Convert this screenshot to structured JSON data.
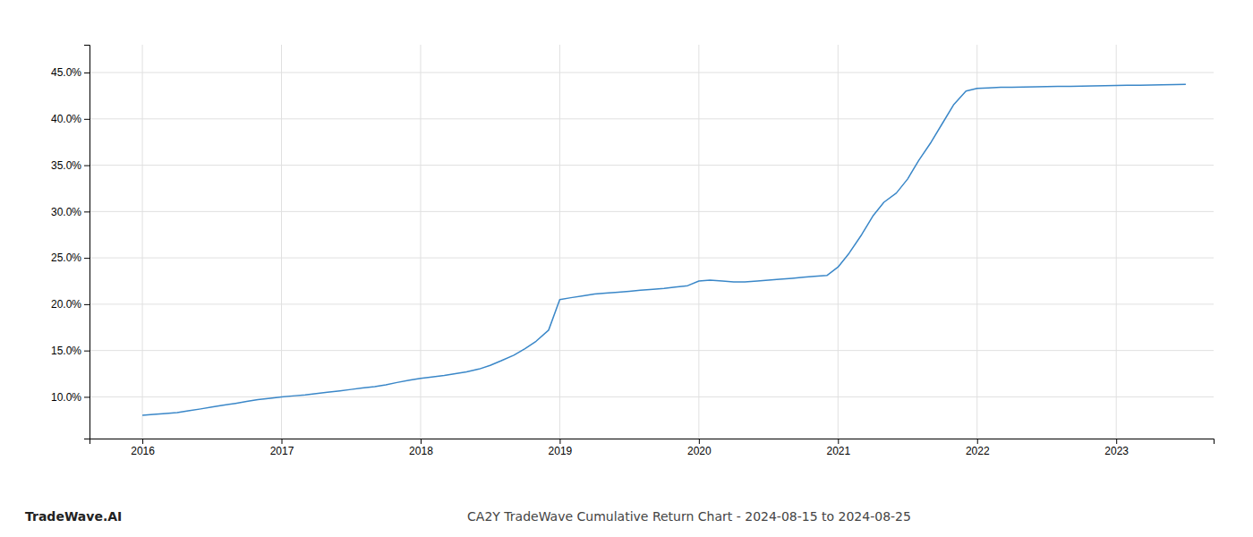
{
  "chart_data": {
    "type": "line",
    "title": "CA2Y TradeWave Cumulative Return Chart - 2024-08-15 to 2024-08-25",
    "annotations": [
      "TradeWave.AI"
    ],
    "color": "#3a87c8",
    "grid": true,
    "x": [
      2016.0,
      2016.08,
      2016.17,
      2016.25,
      2016.33,
      2016.42,
      2016.5,
      2016.58,
      2016.67,
      2016.75,
      2016.83,
      2016.92,
      2017.0,
      2017.08,
      2017.17,
      2017.25,
      2017.33,
      2017.42,
      2017.5,
      2017.58,
      2017.67,
      2017.75,
      2017.83,
      2017.92,
      2018.0,
      2018.08,
      2018.17,
      2018.25,
      2018.33,
      2018.42,
      2018.5,
      2018.58,
      2018.67,
      2018.75,
      2018.83,
      2018.92,
      2019.0,
      2019.08,
      2019.17,
      2019.25,
      2019.33,
      2019.42,
      2019.5,
      2019.58,
      2019.67,
      2019.75,
      2019.83,
      2019.92,
      2020.0,
      2020.08,
      2020.17,
      2020.25,
      2020.33,
      2020.42,
      2020.5,
      2020.58,
      2020.67,
      2020.75,
      2020.83,
      2020.92,
      2021.0,
      2021.08,
      2021.17,
      2021.25,
      2021.33,
      2021.42,
      2021.5,
      2021.58,
      2021.67,
      2021.75,
      2021.83,
      2021.92,
      2022.0,
      2022.08,
      2022.17,
      2022.25,
      2022.33,
      2022.42,
      2022.5,
      2022.58,
      2022.67,
      2022.75,
      2022.83,
      2022.92,
      2023.0,
      2023.08,
      2023.17,
      2023.25,
      2023.33,
      2023.42,
      2023.5
    ],
    "values": [
      8.0,
      8.1,
      8.2,
      8.3,
      8.5,
      8.7,
      8.9,
      9.1,
      9.3,
      9.5,
      9.7,
      9.85,
      10.0,
      10.1,
      10.2,
      10.35,
      10.5,
      10.65,
      10.8,
      10.95,
      11.1,
      11.3,
      11.55,
      11.8,
      12.0,
      12.15,
      12.3,
      12.5,
      12.7,
      13.0,
      13.4,
      13.9,
      14.5,
      15.2,
      16.0,
      17.2,
      20.5,
      20.7,
      20.9,
      21.1,
      21.2,
      21.3,
      21.4,
      21.5,
      21.6,
      21.7,
      21.85,
      22.0,
      22.5,
      22.6,
      22.5,
      22.4,
      22.4,
      22.5,
      22.6,
      22.7,
      22.8,
      22.9,
      23.0,
      23.1,
      24.0,
      25.5,
      27.5,
      29.5,
      31.0,
      32.0,
      33.5,
      35.5,
      37.5,
      39.5,
      41.5,
      43.0,
      43.3,
      43.35,
      43.4,
      43.42,
      43.44,
      43.46,
      43.48,
      43.5,
      43.52,
      43.54,
      43.56,
      43.58,
      43.6,
      43.62,
      43.64,
      43.66,
      43.68,
      43.7,
      43.72
    ],
    "xlim": [
      2015.62,
      2023.7
    ],
    "ylim": [
      5.5,
      48.0
    ],
    "xticks": [
      2016,
      2017,
      2018,
      2019,
      2020,
      2021,
      2022,
      2023
    ],
    "yticks": [
      {
        "value": 10.0,
        "label": "10.0%"
      },
      {
        "value": 15.0,
        "label": "15.0%"
      },
      {
        "value": 20.0,
        "label": "20.0%"
      },
      {
        "value": 25.0,
        "label": "25.0%"
      },
      {
        "value": 30.0,
        "label": "30.0%"
      },
      {
        "value": 35.0,
        "label": "35.0%"
      },
      {
        "value": 40.0,
        "label": "40.0%"
      },
      {
        "value": 45.0,
        "label": "45.0%"
      }
    ]
  }
}
